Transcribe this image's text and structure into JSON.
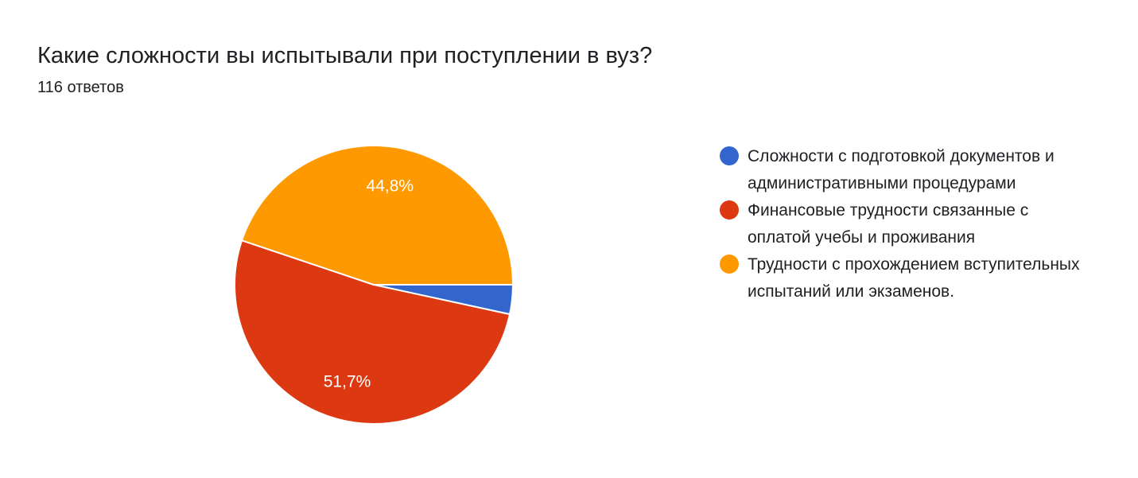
{
  "header": {
    "title": "Какие сложности вы испытывали при поступлении в вуз?",
    "responses": "116 ответов"
  },
  "chart_data": {
    "type": "pie",
    "title": "Какие сложности вы испытывали при поступлении в вуз?",
    "categories": [
      "Сложности с подготовкой документов и административными процедурами",
      "Финансовые трудности связанные с оплатой учебы и проживания",
      "Трудности с прохождением вступительных испытаний или экзаменов."
    ],
    "values": [
      3.4,
      51.7,
      44.8
    ],
    "labels": [
      "",
      "51,7%",
      "44,8%"
    ],
    "colors": [
      "#3366cc",
      "#dc3912",
      "#ff9900"
    ],
    "legend_position": "right"
  }
}
